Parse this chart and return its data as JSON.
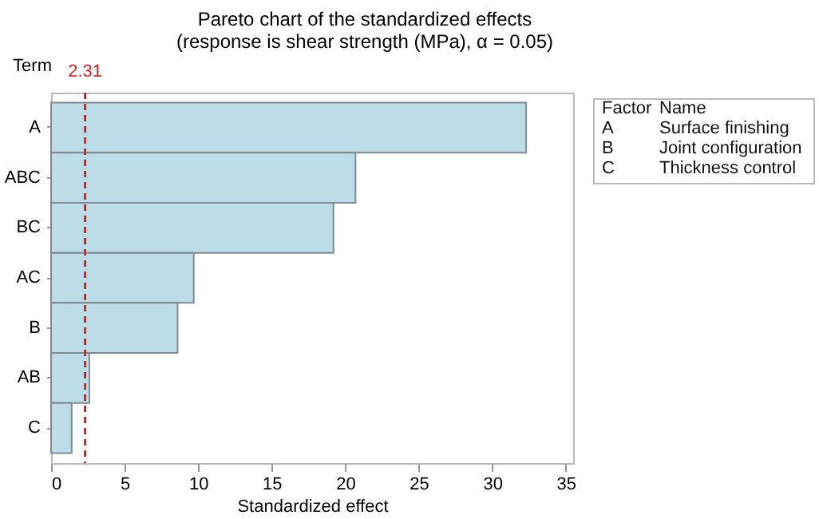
{
  "chart_data": {
    "type": "bar",
    "orientation": "horizontal",
    "title": "Pareto chart of the standardized effects",
    "subtitle": "(response is shear strength (MPa), α = 0.05)",
    "xlabel": "Standardized effect",
    "ylabel": "Term",
    "categories": [
      "A",
      "ABC",
      "BC",
      "AC",
      "B",
      "AB",
      "C"
    ],
    "values": [
      32.3,
      20.7,
      19.2,
      9.7,
      8.6,
      2.6,
      1.4
    ],
    "color": "#bcdce8",
    "xlim": [
      0,
      35.5
    ],
    "xticks": [
      0,
      5,
      10,
      15,
      20,
      25,
      30,
      35
    ],
    "grid": false,
    "ref_lines": [
      {
        "axis": "x",
        "value": 2.31,
        "label": "2.31",
        "color": "#e02020",
        "line_style": "dashed"
      }
    ],
    "annotations": [
      "Factor",
      "Name",
      "A",
      "Surface finishing",
      "B",
      "Joint configuration",
      "C",
      "Thickness control"
    ]
  }
}
